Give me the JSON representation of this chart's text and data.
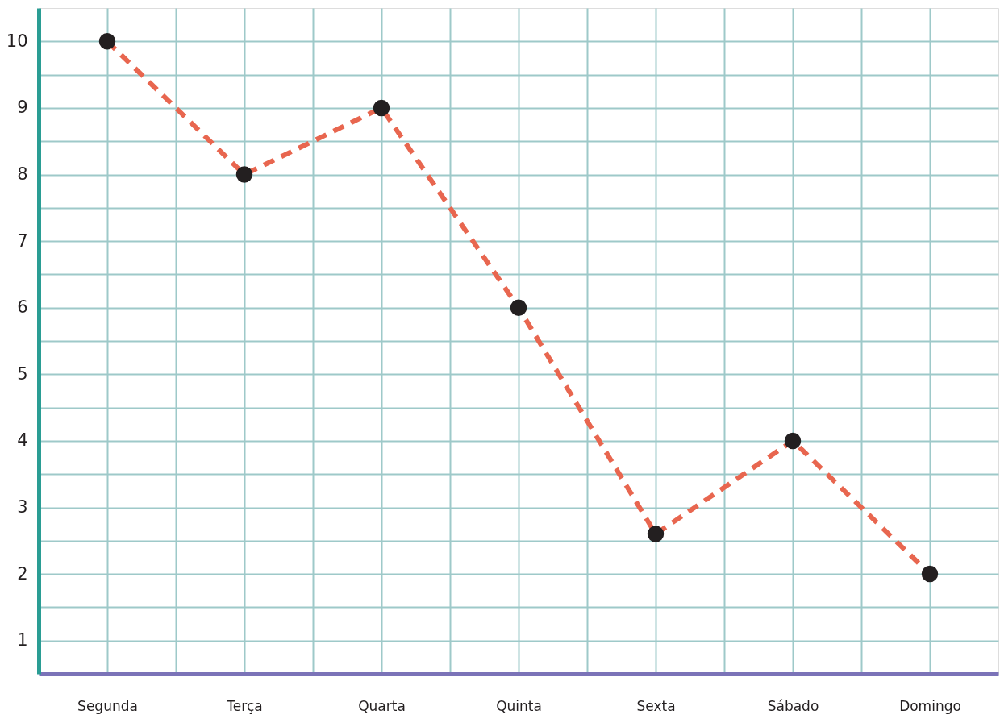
{
  "chart_data": {
    "type": "line",
    "categories": [
      "Segunda",
      "Terça",
      "Quarta",
      "Quinta",
      "Sexta",
      "Sábado",
      "Domingo"
    ],
    "series": [
      {
        "color": "#e8664f",
        "values": [
          10,
          8,
          9,
          6,
          2.6,
          4,
          2
        ]
      }
    ],
    "ylim": [
      0.5,
      10.5
    ],
    "yticks": [
      1,
      {
        "value": 1.5,
        "label": null
      },
      2,
      {
        "value": 2.5,
        "label": null
      },
      3,
      {
        "value": 3.5,
        "label": null
      },
      4,
      {
        "value": 4.5,
        "label": null
      },
      5,
      {
        "value": 5.5,
        "label": null
      },
      6,
      {
        "value": 6.5,
        "label": null
      },
      7,
      {
        "value": 7.5,
        "label": null
      },
      8,
      {
        "value": 8.5,
        "label": null
      },
      9,
      {
        "value": 9.5,
        "label": null
      },
      10
    ],
    "grid": true,
    "marker": "circle",
    "line_style": "dashed"
  }
}
